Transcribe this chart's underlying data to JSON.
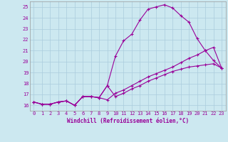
{
  "xlabel": "Windchill (Refroidissement éolien,°C)",
  "bg_color": "#cce8f0",
  "line_color": "#990099",
  "grid_color": "#aaccdd",
  "xlim": [
    -0.5,
    23.5
  ],
  "ylim": [
    15.5,
    25.5
  ],
  "yticks": [
    16,
    17,
    18,
    19,
    20,
    21,
    22,
    23,
    24,
    25
  ],
  "xticks": [
    0,
    1,
    2,
    3,
    4,
    5,
    6,
    7,
    8,
    9,
    10,
    11,
    12,
    13,
    14,
    15,
    16,
    17,
    18,
    19,
    20,
    21,
    22,
    23
  ],
  "line1_x": [
    0,
    1,
    2,
    3,
    4,
    5,
    6,
    7,
    8,
    9,
    10,
    11,
    12,
    13,
    14,
    15,
    16,
    17,
    18,
    19,
    20,
    21,
    22,
    23
  ],
  "line1_y": [
    16.3,
    16.1,
    16.1,
    16.3,
    16.4,
    16.0,
    16.8,
    16.8,
    16.7,
    17.8,
    20.5,
    21.9,
    22.5,
    23.8,
    24.8,
    25.0,
    25.2,
    24.9,
    24.2,
    23.6,
    22.1,
    21.0,
    20.1,
    19.4
  ],
  "line2_x": [
    0,
    1,
    2,
    3,
    4,
    5,
    6,
    7,
    8,
    9,
    10,
    11,
    12,
    13,
    14,
    15,
    16,
    17,
    18,
    19,
    20,
    21,
    22,
    23
  ],
  "line2_y": [
    16.3,
    16.1,
    16.1,
    16.3,
    16.4,
    16.0,
    16.8,
    16.8,
    16.7,
    17.8,
    16.8,
    17.1,
    17.5,
    17.8,
    18.2,
    18.5,
    18.8,
    19.1,
    19.3,
    19.5,
    19.6,
    19.7,
    19.8,
    19.4
  ],
  "line3_x": [
    0,
    1,
    2,
    3,
    4,
    5,
    6,
    7,
    8,
    9,
    10,
    11,
    12,
    13,
    14,
    15,
    16,
    17,
    18,
    19,
    20,
    21,
    22,
    23
  ],
  "line3_y": [
    16.3,
    16.1,
    16.1,
    16.3,
    16.4,
    16.0,
    16.8,
    16.8,
    16.7,
    16.5,
    17.1,
    17.4,
    17.8,
    18.2,
    18.6,
    18.9,
    19.2,
    19.5,
    19.9,
    20.3,
    20.6,
    21.0,
    21.3,
    19.4
  ],
  "tick_fontsize": 5.0,
  "xlabel_fontsize": 5.5
}
